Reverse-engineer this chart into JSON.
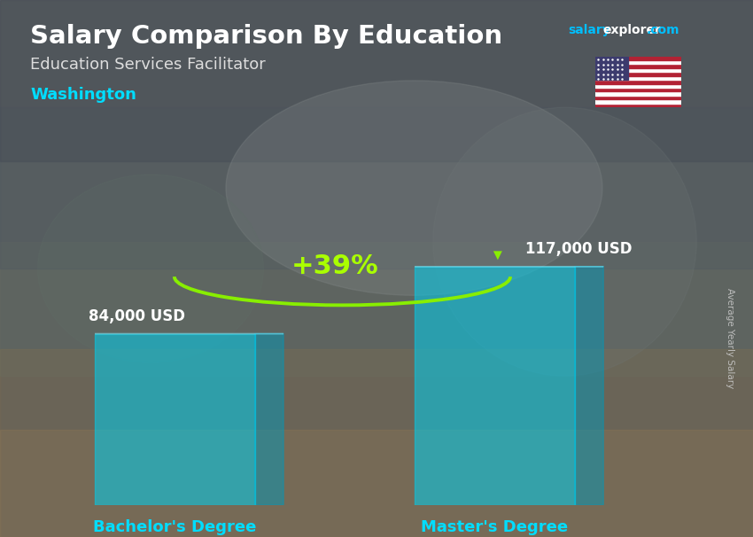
{
  "title": "Salary Comparison By Education",
  "subtitle": "Education Services Facilitator",
  "location": "Washington",
  "categories": [
    "Bachelor's Degree",
    "Master's Degree"
  ],
  "values": [
    84000,
    117000
  ],
  "value_labels": [
    "84,000 USD",
    "117,000 USD"
  ],
  "pct_change": "+39%",
  "bar_color_face": "#00CFEE",
  "bar_color_light": "#80EEFF",
  "bar_color_dark": "#0099BB",
  "bar_alpha": 0.55,
  "bg_color": "#556070",
  "title_color": "#FFFFFF",
  "subtitle_color": "#DDDDDD",
  "location_color": "#00DDFF",
  "xticklabel_color": "#00DDFF",
  "salary_label_color": "#FFFFFF",
  "pct_color": "#AAFF00",
  "arrow_color": "#88EE00",
  "site_salary_color": "#00BFFF",
  "site_explorer_color": "#FFFFFF",
  "site_com_color": "#00BFFF",
  "ylabel_text": "Average Yearly Salary",
  "ylabel_color": "#CCCCCC",
  "ylim": [
    0,
    145000
  ],
  "bar_positions": [
    1.4,
    3.5
  ],
  "bar_width": 1.05
}
